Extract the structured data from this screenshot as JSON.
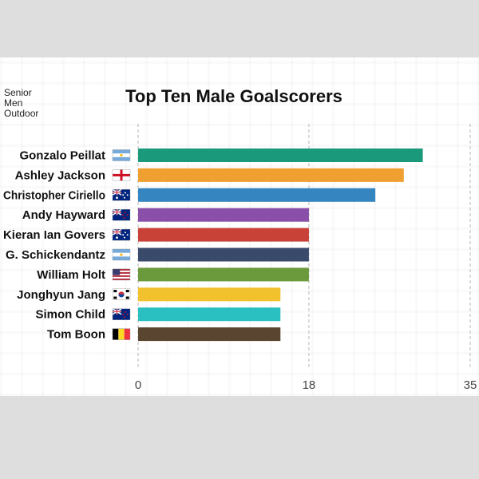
{
  "subtitle": {
    "line1": "Senior",
    "line2": "Men",
    "line3": "Outdoor"
  },
  "chart_data": {
    "type": "bar",
    "orientation": "horizontal",
    "title": "Top Ten Male Goalscorers",
    "xlabel": "",
    "ylabel": "",
    "xlim": [
      0,
      35
    ],
    "xticks": [
      "0",
      "18",
      "35"
    ],
    "grid": "vertical dashed",
    "categories": [
      "Gonzalo Peillat",
      "Ashley Jackson",
      "Christopher Ciriello",
      "Andy Hayward",
      "Kieran Ian Govers",
      "G. Schickendantz",
      "William Holt",
      "Jonghyun Jang",
      "Simon Child",
      "Tom Boon"
    ],
    "flags": [
      "argentina-flag-icon",
      "england-flag-icon",
      "australia-flag-icon",
      "new-zealand-flag-icon",
      "australia-flag-icon",
      "argentina-flag-icon",
      "usa-flag-icon",
      "south-korea-flag-icon",
      "new-zealand-flag-icon",
      "belgium-flag-icon"
    ],
    "values": [
      30,
      28,
      25,
      18,
      18,
      18,
      18,
      15,
      15,
      15
    ],
    "colors": [
      "#1a9a7a",
      "#f0a030",
      "#3585c0",
      "#8a4fa8",
      "#c94238",
      "#3a4a6b",
      "#6a9a3c",
      "#f2c12e",
      "#2abfc0",
      "#5a4530"
    ]
  }
}
